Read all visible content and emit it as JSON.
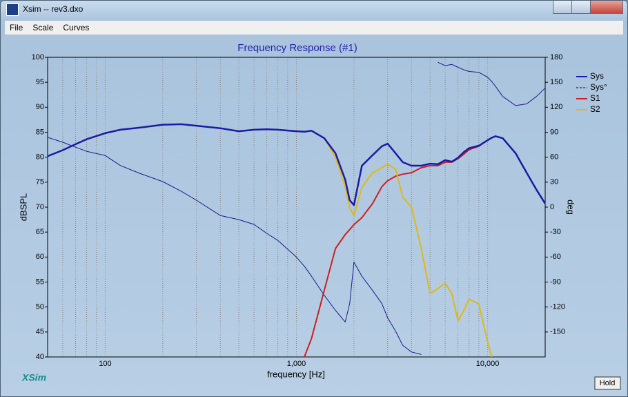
{
  "window": {
    "title": "Xsim -- rev3.dxo"
  },
  "menu": [
    "File",
    "Scale",
    "Curves"
  ],
  "brand": "XSim",
  "hold_button": "Hold",
  "chart_data": {
    "type": "line",
    "title": "Frequency Response (#1)",
    "x_label": "frequency [Hz]",
    "y_label": "dBSPL",
    "y2_label": "deg",
    "log_x": true,
    "grid": "x",
    "xlim": [
      50,
      20000
    ],
    "xticks": [
      100,
      {
        "value": 1000,
        "label": "1,000"
      },
      {
        "value": 10000,
        "label": "10,000"
      }
    ],
    "minor_xticks": [
      60,
      70,
      80,
      90,
      200,
      300,
      400,
      500,
      600,
      700,
      800,
      900,
      2000,
      3000,
      4000,
      5000,
      6000,
      7000,
      8000,
      9000
    ],
    "ylim": [
      40,
      100
    ],
    "yticks": [
      40,
      45,
      50,
      55,
      60,
      65,
      70,
      75,
      80,
      85,
      90,
      95,
      100
    ],
    "y2lim": [
      -180,
      180
    ],
    "y2ticks": [
      -150,
      -120,
      -90,
      -60,
      -30,
      0,
      30,
      60,
      90,
      120,
      150,
      180
    ],
    "legend": "right",
    "x": [
      50,
      60,
      70,
      80,
      100,
      120,
      150,
      200,
      250,
      300,
      400,
      500,
      600,
      700,
      800,
      1000,
      1100,
      1200,
      1400,
      1600,
      1800,
      1900,
      2000,
      2200,
      2500,
      2800,
      3000,
      3300,
      3600,
      4000,
      4500,
      5000,
      5500,
      6000,
      6500,
      7000,
      7500,
      8000,
      9000,
      10000,
      10500,
      11000,
      12000,
      14000,
      16000,
      18000,
      20000
    ],
    "series": [
      {
        "name": "Sys",
        "color": "#1a1aa6",
        "width": 2.5,
        "values": [
          80.2,
          81.4,
          82.6,
          83.6,
          84.8,
          85.5,
          85.9,
          86.5,
          86.6,
          86.3,
          85.8,
          85.2,
          85.5,
          85.6,
          85.5,
          85.2,
          85.1,
          85.3,
          83.8,
          80.8,
          75.5,
          71.4,
          70.4,
          78.3,
          80.4,
          82.2,
          82.7,
          80.8,
          79,
          78.3,
          78.3,
          78.7,
          78.6,
          79.4,
          79.1,
          79.9,
          81,
          81.8,
          82.3,
          83.4,
          83.9,
          84.2,
          83.8,
          80.8,
          76.9,
          73.5,
          70.7
        ]
      },
      {
        "name": "Sys°",
        "color": "#1a1a8c",
        "width": 1,
        "dashed": true,
        "axis": "y2",
        "values": [
          83.8,
          78,
          72,
          67,
          62,
          50,
          41,
          30.7,
          19,
          8.3,
          -10,
          -15,
          -20.7,
          -31.5,
          -40,
          -60,
          -71,
          -83,
          -106,
          -124,
          -138,
          -116,
          -66,
          -83,
          -100,
          -116,
          -133,
          -149,
          -166,
          -174,
          -177,
          null,
          174,
          170,
          171.5,
          168,
          165,
          163,
          162,
          156,
          151,
          145,
          133,
          122,
          124,
          133,
          143
        ]
      },
      {
        "name": "S1",
        "color": "#cc1f1f",
        "width": 2,
        "values": [
          null,
          null,
          null,
          null,
          null,
          null,
          null,
          null,
          null,
          null,
          null,
          null,
          null,
          null,
          null,
          null,
          40,
          43.7,
          53.4,
          61.7,
          64.5,
          65.5,
          66.5,
          67.9,
          70.7,
          74.1,
          75.3,
          76.2,
          76.6,
          76.9,
          77.9,
          78.3,
          78.3,
          79,
          79,
          79.7,
          80.6,
          81.5,
          82.2,
          83.4,
          83.9,
          84.2,
          83.8,
          80.8,
          76.9,
          73.5,
          70.7
        ]
      },
      {
        "name": "S2",
        "color": "#e0b814",
        "width": 2,
        "values": [
          80.2,
          81.4,
          82.6,
          83.6,
          84.8,
          85.5,
          85.9,
          86.5,
          86.6,
          86.3,
          85.8,
          85.2,
          85.5,
          85.6,
          85.5,
          85.2,
          85.1,
          85.3,
          83.8,
          80,
          74.2,
          70,
          68.3,
          74,
          76.9,
          77.9,
          78.6,
          77.6,
          72,
          70,
          61.7,
          52.7,
          53.7,
          54.8,
          52.7,
          47.2,
          49.3,
          51.6,
          50.6,
          43,
          40,
          null,
          null,
          null,
          null,
          null,
          null
        ]
      }
    ]
  }
}
